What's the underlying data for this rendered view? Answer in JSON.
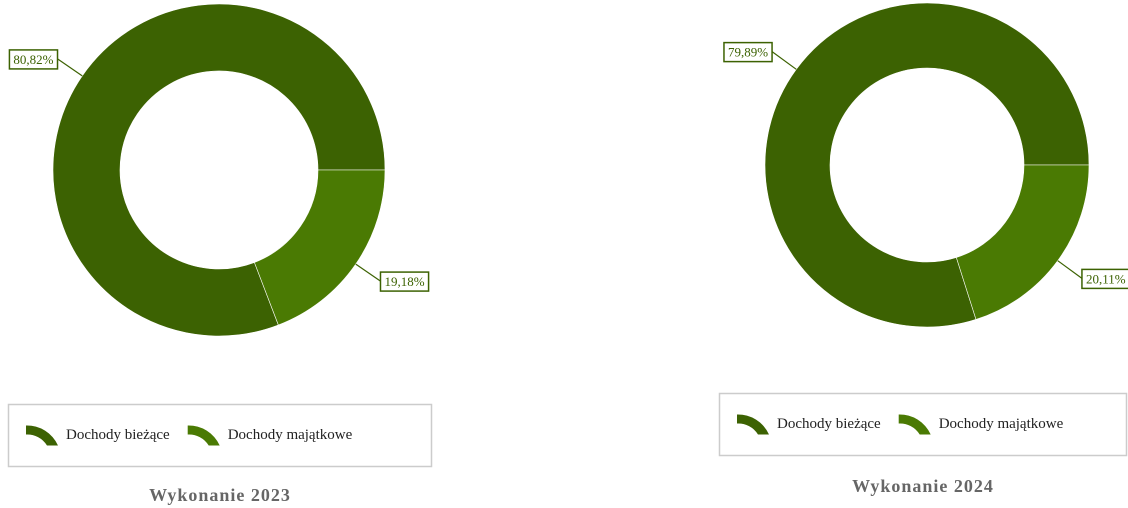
{
  "chart_data": [
    {
      "type": "pie",
      "title": "Wykonanie 2023",
      "categories": [
        "Dochody bieżące",
        "Dochody majątkowe"
      ],
      "values": [
        80.82,
        19.18
      ],
      "value_labels": [
        "80,82%",
        "19,18%"
      ],
      "colors": [
        "#3c6202",
        "#4a7a03"
      ]
    },
    {
      "type": "pie",
      "title": "Wykonanie 2024",
      "categories": [
        "Dochody bieżące",
        "Dochody majątkowe"
      ],
      "values": [
        79.89,
        20.11
      ],
      "value_labels": [
        "79,89%",
        "20,11%"
      ],
      "colors": [
        "#3c6202",
        "#4a7a03"
      ]
    }
  ]
}
